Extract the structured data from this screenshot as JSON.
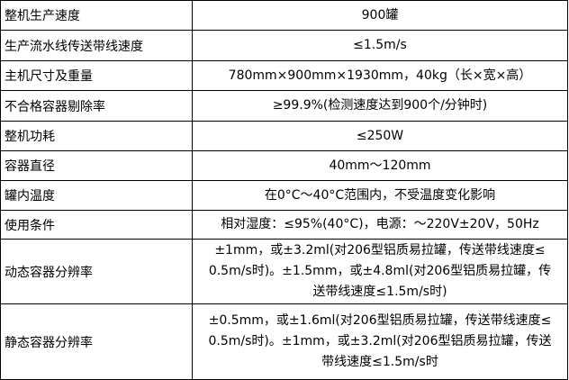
{
  "table": {
    "rows": [
      [
        "整机生产速度",
        [
          "900罐"
        ]
      ],
      [
        "生产流水线传送带线速度",
        [
          "≤1.5m/s"
        ]
      ],
      [
        "主机尺寸及重量",
        [
          "780mm×900mm×1930mm，40kg（长×宽×高）"
        ]
      ],
      [
        "不合格容器剔除率",
        [
          "≥99.9%(检测速度达到900个/分钟时)"
        ]
      ],
      [
        "整机功耗",
        [
          "≤250W"
        ]
      ],
      [
        "容器直径",
        [
          "40mm～120mm"
        ]
      ],
      [
        "罐内温度",
        [
          "在0°C～40°C范围内，不受温度变化影响"
        ]
      ],
      [
        "使用条件",
        [
          "相对湿度：≤95%(40°C)，电源：～220V±20V，50Hz"
        ]
      ],
      [
        "动态容器分辨率",
        [
          "±1mm，或±3.2ml(对206型铝质易拉罐，传送带线速度≤",
          "0.5m/s时)。±1.5mm，或±4.8ml(对206型铝质易拉罐，传",
          "送带线速度≤1.5m/s时)"
        ]
      ],
      [
        "静态容器分辨率",
        [
          "±0.5mm，或±1.6ml(对206型铝质易拉罐，传送带线速度≤",
          "0.5m/s时)。±1mm，或±3.2ml(对206型铝质易拉罐，传送",
          "带线速度≤1.5m/s时"
        ]
      ]
    ]
  }
}
